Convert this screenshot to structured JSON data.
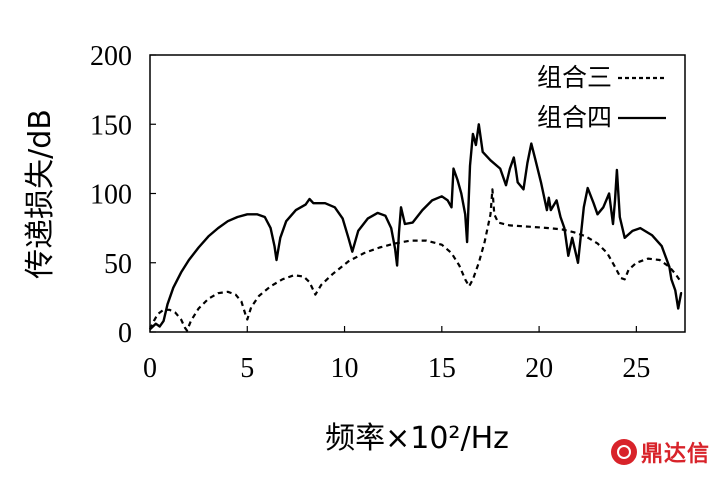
{
  "chart_data": {
    "type": "line",
    "title": "",
    "xlabel": "频率×10²/Hz",
    "ylabel": "传递损失/dB",
    "xlim": [
      0,
      27.5
    ],
    "ylim": [
      0,
      200
    ],
    "xticks": [
      0,
      5,
      10,
      15,
      20,
      25
    ],
    "yticks": [
      0,
      50,
      100,
      150,
      200
    ],
    "grid": false,
    "legend_position": "top-right",
    "series": [
      {
        "name": "组合三",
        "style": "dashed",
        "color": "#000000",
        "points": [
          [
            0,
            2
          ],
          [
            0.2,
            8
          ],
          [
            0.4,
            13
          ],
          [
            0.7,
            16
          ],
          [
            1.0,
            16
          ],
          [
            1.3,
            14
          ],
          [
            1.6,
            9
          ],
          [
            1.8,
            3
          ],
          [
            1.9,
            1
          ],
          [
            2.1,
            8
          ],
          [
            2.5,
            17
          ],
          [
            3.0,
            24
          ],
          [
            3.5,
            28
          ],
          [
            4.0,
            29
          ],
          [
            4.4,
            27
          ],
          [
            4.7,
            22
          ],
          [
            4.9,
            13
          ],
          [
            5.0,
            9
          ],
          [
            5.2,
            18
          ],
          [
            5.6,
            26
          ],
          [
            6.2,
            33
          ],
          [
            6.8,
            38
          ],
          [
            7.4,
            41
          ],
          [
            7.9,
            40
          ],
          [
            8.2,
            36
          ],
          [
            8.4,
            30
          ],
          [
            8.5,
            27
          ],
          [
            8.8,
            34
          ],
          [
            9.4,
            42
          ],
          [
            10.2,
            51
          ],
          [
            11.0,
            57
          ],
          [
            11.8,
            61
          ],
          [
            12.6,
            64
          ],
          [
            13.4,
            66
          ],
          [
            14.2,
            66
          ],
          [
            15.0,
            63
          ],
          [
            15.5,
            57
          ],
          [
            15.9,
            48
          ],
          [
            16.2,
            38
          ],
          [
            16.4,
            33
          ],
          [
            16.6,
            38
          ],
          [
            16.9,
            50
          ],
          [
            17.2,
            65
          ],
          [
            17.5,
            85
          ],
          [
            17.6,
            103
          ],
          [
            17.7,
            85
          ],
          [
            17.9,
            79
          ],
          [
            18.5,
            77
          ],
          [
            19.5,
            76
          ],
          [
            20.5,
            75
          ],
          [
            21.2,
            74
          ],
          [
            21.8,
            72
          ],
          [
            22.4,
            69
          ],
          [
            23.0,
            64
          ],
          [
            23.5,
            57
          ],
          [
            23.9,
            47
          ],
          [
            24.2,
            39
          ],
          [
            24.4,
            38
          ],
          [
            24.6,
            45
          ],
          [
            25.0,
            50
          ],
          [
            25.6,
            53
          ],
          [
            26.2,
            52
          ],
          [
            26.7,
            47
          ],
          [
            27.0,
            42
          ],
          [
            27.3,
            36
          ]
        ]
      },
      {
        "name": "组合四",
        "style": "solid",
        "color": "#000000",
        "points": [
          [
            0,
            2
          ],
          [
            0.3,
            6
          ],
          [
            0.5,
            4
          ],
          [
            0.7,
            8
          ],
          [
            0.9,
            20
          ],
          [
            1.2,
            32
          ],
          [
            1.6,
            43
          ],
          [
            2.0,
            52
          ],
          [
            2.5,
            61
          ],
          [
            3.0,
            69
          ],
          [
            3.5,
            75
          ],
          [
            4.0,
            80
          ],
          [
            4.5,
            83
          ],
          [
            5.0,
            85
          ],
          [
            5.5,
            85
          ],
          [
            5.9,
            83
          ],
          [
            6.2,
            75
          ],
          [
            6.4,
            62
          ],
          [
            6.5,
            52
          ],
          [
            6.7,
            68
          ],
          [
            7.0,
            80
          ],
          [
            7.5,
            88
          ],
          [
            8.0,
            92
          ],
          [
            8.2,
            96
          ],
          [
            8.4,
            93
          ],
          [
            9.0,
            93
          ],
          [
            9.5,
            90
          ],
          [
            9.9,
            82
          ],
          [
            10.2,
            68
          ],
          [
            10.4,
            58
          ],
          [
            10.7,
            73
          ],
          [
            11.2,
            82
          ],
          [
            11.7,
            86
          ],
          [
            12.1,
            84
          ],
          [
            12.4,
            75
          ],
          [
            12.6,
            60
          ],
          [
            12.7,
            48
          ],
          [
            12.8,
            72
          ],
          [
            12.9,
            90
          ],
          [
            13.1,
            78
          ],
          [
            13.5,
            79
          ],
          [
            14.0,
            88
          ],
          [
            14.5,
            95
          ],
          [
            15.0,
            98
          ],
          [
            15.3,
            95
          ],
          [
            15.5,
            90
          ],
          [
            15.6,
            118
          ],
          [
            15.8,
            110
          ],
          [
            16.0,
            100
          ],
          [
            16.2,
            85
          ],
          [
            16.3,
            65
          ],
          [
            16.45,
            120
          ],
          [
            16.6,
            143
          ],
          [
            16.75,
            135
          ],
          [
            16.9,
            150
          ],
          [
            17.1,
            130
          ],
          [
            17.5,
            124
          ],
          [
            18.0,
            118
          ],
          [
            18.3,
            106
          ],
          [
            18.5,
            118
          ],
          [
            18.7,
            126
          ],
          [
            18.8,
            118
          ],
          [
            18.9,
            108
          ],
          [
            19.2,
            103
          ],
          [
            19.4,
            122
          ],
          [
            19.6,
            136
          ],
          [
            19.8,
            125
          ],
          [
            20.1,
            108
          ],
          [
            20.4,
            88
          ],
          [
            20.5,
            97
          ],
          [
            20.6,
            88
          ],
          [
            20.9,
            95
          ],
          [
            21.1,
            83
          ],
          [
            21.3,
            75
          ],
          [
            21.5,
            55
          ],
          [
            21.7,
            68
          ],
          [
            22.0,
            50
          ],
          [
            22.3,
            90
          ],
          [
            22.5,
            104
          ],
          [
            22.8,
            93
          ],
          [
            23.0,
            85
          ],
          [
            23.3,
            90
          ],
          [
            23.6,
            100
          ],
          [
            23.8,
            78
          ],
          [
            23.9,
            95
          ],
          [
            24.0,
            117
          ],
          [
            24.15,
            83
          ],
          [
            24.4,
            68
          ],
          [
            24.8,
            73
          ],
          [
            25.2,
            75
          ],
          [
            25.8,
            70
          ],
          [
            26.3,
            62
          ],
          [
            26.7,
            47
          ],
          [
            26.8,
            38
          ],
          [
            27.0,
            30
          ],
          [
            27.15,
            17
          ],
          [
            27.3,
            28
          ],
          [
            27.35,
            28
          ]
        ]
      }
    ]
  }
}
